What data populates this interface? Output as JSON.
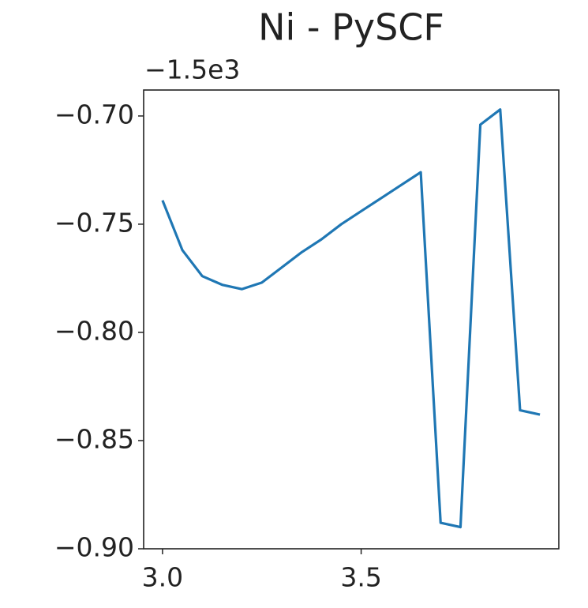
{
  "chart_data": {
    "type": "line",
    "title": "Ni - PySCF",
    "y_offset_text": "−1.5e3",
    "x": [
      3.0,
      3.05,
      3.1,
      3.15,
      3.2,
      3.25,
      3.3,
      3.35,
      3.4,
      3.45,
      3.5,
      3.55,
      3.6,
      3.65,
      3.7,
      3.75,
      3.8,
      3.85,
      3.9,
      3.95
    ],
    "series": [
      {
        "color": "#1f77b4",
        "values": [
          -0.739,
          -0.762,
          -0.774,
          -0.778,
          -0.78,
          -0.777,
          -0.77,
          -0.763,
          -0.757,
          -0.75,
          -0.744,
          -0.738,
          -0.732,
          -0.726,
          -0.888,
          -0.89,
          -0.704,
          -0.697,
          -0.836,
          -0.838
        ]
      }
    ],
    "xlim": [
      2.9525,
      3.9975
    ],
    "ylim": [
      -0.9,
      -0.688
    ],
    "xticks": [
      {
        "value": 3.0,
        "label": "3.0"
      },
      3.5
    ],
    "yticks": [
      {
        "value": -0.9,
        "label": "−0.90"
      },
      {
        "value": -0.85,
        "label": "−0.85"
      },
      {
        "value": -0.8,
        "label": "−0.80"
      },
      {
        "value": -0.75,
        "label": "−0.75"
      },
      {
        "value": -0.7,
        "label": "−0.70"
      }
    ]
  }
}
